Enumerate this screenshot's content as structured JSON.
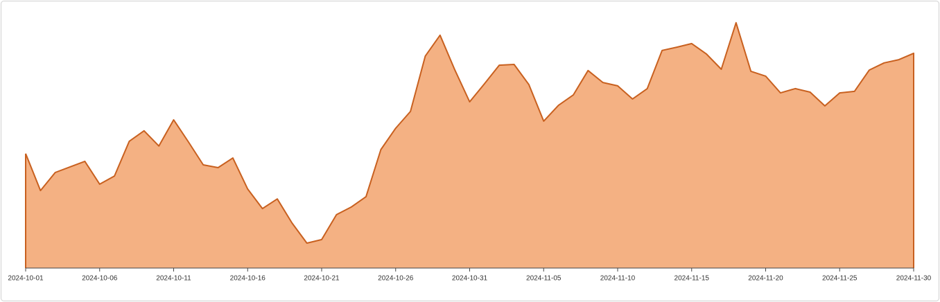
{
  "chart_data": {
    "type": "area",
    "categories": [
      "2024-10-01",
      null,
      null,
      null,
      null,
      "2024-10-06",
      null,
      null,
      null,
      null,
      "2024-10-11",
      null,
      null,
      null,
      null,
      "2024-10-16",
      null,
      null,
      null,
      null,
      "2024-10-21",
      null,
      null,
      null,
      null,
      "2024-10-26",
      null,
      null,
      null,
      null,
      "2024-10-31",
      null,
      null,
      null,
      null,
      "2024-11-05",
      null,
      null,
      null,
      null,
      "2024-11-10",
      null,
      null,
      null,
      null,
      "2024-11-15",
      null,
      null,
      null,
      null,
      "2024-11-20",
      null,
      null,
      null,
      null,
      "2024-11-25",
      null,
      null,
      null,
      null,
      "2024-11-30"
    ],
    "values": [
      45.0,
      30.5,
      37.6,
      39.8,
      42.0,
      33.0,
      36.2,
      49.9,
      54.0,
      48.0,
      58.3,
      49.6,
      40.6,
      39.5,
      43.3,
      31.1,
      23.4,
      27.2,
      17.7,
      9.8,
      11.2,
      21.0,
      24.0,
      28.1,
      46.6,
      55.0,
      61.6,
      83.4,
      91.6,
      77.9,
      65.4,
      72.5,
      79.8,
      80.1,
      72.2,
      57.8,
      64.0,
      68.1,
      77.7,
      73.0,
      71.7,
      66.5,
      70.6,
      85.6,
      86.9,
      88.3,
      84.2,
      78.2,
      96.5,
      77.4,
      75.5,
      68.9,
      70.6,
      69.2,
      63.8,
      68.9,
      69.5,
      77.9,
      80.7,
      82.0,
      84.5
    ],
    "color": "#f4b183",
    "line_color": "#c8601f",
    "ylim": [
      0,
      100
    ]
  }
}
